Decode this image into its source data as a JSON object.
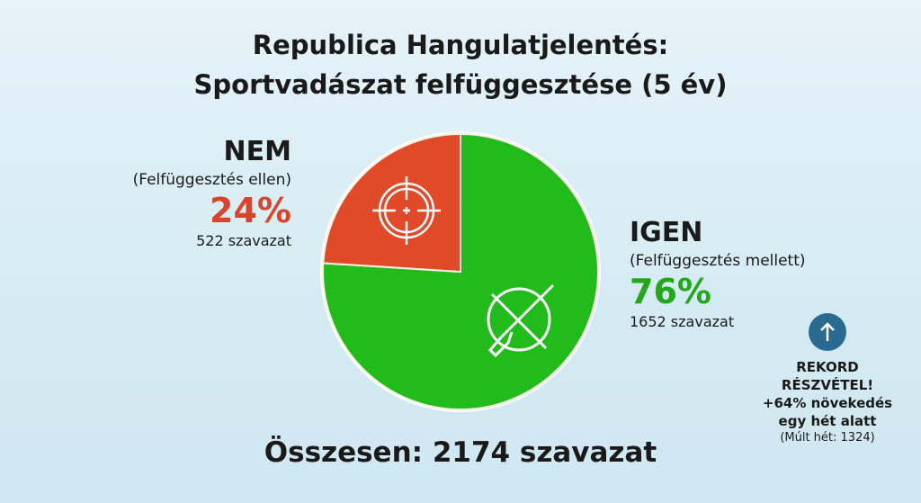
{
  "title": [
    "Republica Hangulatjelentés:",
    "Sportvadászat felfüggesztése (5 év)"
  ],
  "colors": {
    "no": "#e04a28",
    "yes": "#22bb1c",
    "accent": "#2a6a90"
  },
  "chart_data": {
    "type": "pie",
    "title": "Republica Hangulatjelentés: Sportvadászat felfüggesztése (5 év)",
    "slices": [
      {
        "label": "IGEN",
        "sublabel": "(Felfüggesztés mellett)",
        "percent_label": "76%",
        "value": 76,
        "votes_label": "1652 szavazat",
        "votes": 1652,
        "icon": "crossed-rifle-icon"
      },
      {
        "label": "NEM",
        "sublabel": "(Felfüggesztés ellen)",
        "percent_label": "24%",
        "value": 24,
        "votes_label": "522 szavazat",
        "votes": 522,
        "icon": "crosshair-icon"
      }
    ]
  },
  "total": "Összesen: 2174 szavazat",
  "record": {
    "icon": "arrow-up-icon",
    "lines": [
      "REKORD",
      "RÉSZVÉTEL!",
      "+64% növekedés",
      "egy hét alatt"
    ],
    "note": "(Múlt hét: 1324)"
  }
}
